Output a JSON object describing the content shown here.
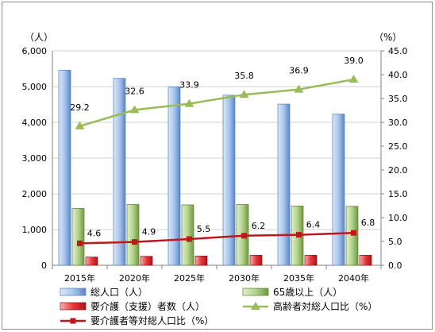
{
  "chart_data": {
    "type": "bar",
    "categories": [
      "2015年",
      "2020年",
      "2025年",
      "2030年",
      "2035年",
      "2040年"
    ],
    "y_left_unit": "（人）",
    "y_right_unit": "（%）",
    "ylim_left": [
      0,
      6000
    ],
    "ylim_right": [
      0,
      45
    ],
    "y_left_ticks": [
      "0",
      "1,000",
      "2,000",
      "3,000",
      "4,000",
      "5,000",
      "6,000"
    ],
    "y_right_ticks": [
      "0.0",
      "5.0",
      "10.0",
      "15.0",
      "20.0",
      "25.0",
      "30.0",
      "35.0",
      "40.0",
      "45.0"
    ],
    "grid": true,
    "legend_position": "bottom",
    "series": [
      {
        "name": "総人口（人）",
        "type": "bar",
        "axis": "left",
        "color": "#8eb4e3",
        "values": [
          5460,
          5230,
          4990,
          4760,
          4510,
          4230
        ]
      },
      {
        "name": "65歳以上（人）",
        "type": "bar",
        "axis": "left",
        "color": "#9bbb59",
        "values": [
          1590,
          1700,
          1690,
          1700,
          1660,
          1650
        ]
      },
      {
        "name": "要介護（支援）者数（人）",
        "type": "bar",
        "axis": "left",
        "color": "#e8383d",
        "values": [
          230,
          250,
          260,
          280,
          280,
          280
        ]
      },
      {
        "name": "高齢者対総人口比（%）",
        "type": "line",
        "axis": "right",
        "color": "#9bbb59",
        "values": [
          29.2,
          32.6,
          33.9,
          35.8,
          36.9,
          39.0
        ],
        "labels": [
          "29.2",
          "32.6",
          "33.9",
          "35.8",
          "36.9",
          "39.0"
        ]
      },
      {
        "name": "要介護者等対総人口比（%）",
        "type": "line",
        "axis": "right",
        "color": "#c0161c",
        "values": [
          4.6,
          4.9,
          5.5,
          6.2,
          6.4,
          6.8
        ],
        "labels": [
          "4.6",
          "4.9",
          "5.5",
          "6.2",
          "6.4",
          "6.8"
        ]
      }
    ]
  }
}
